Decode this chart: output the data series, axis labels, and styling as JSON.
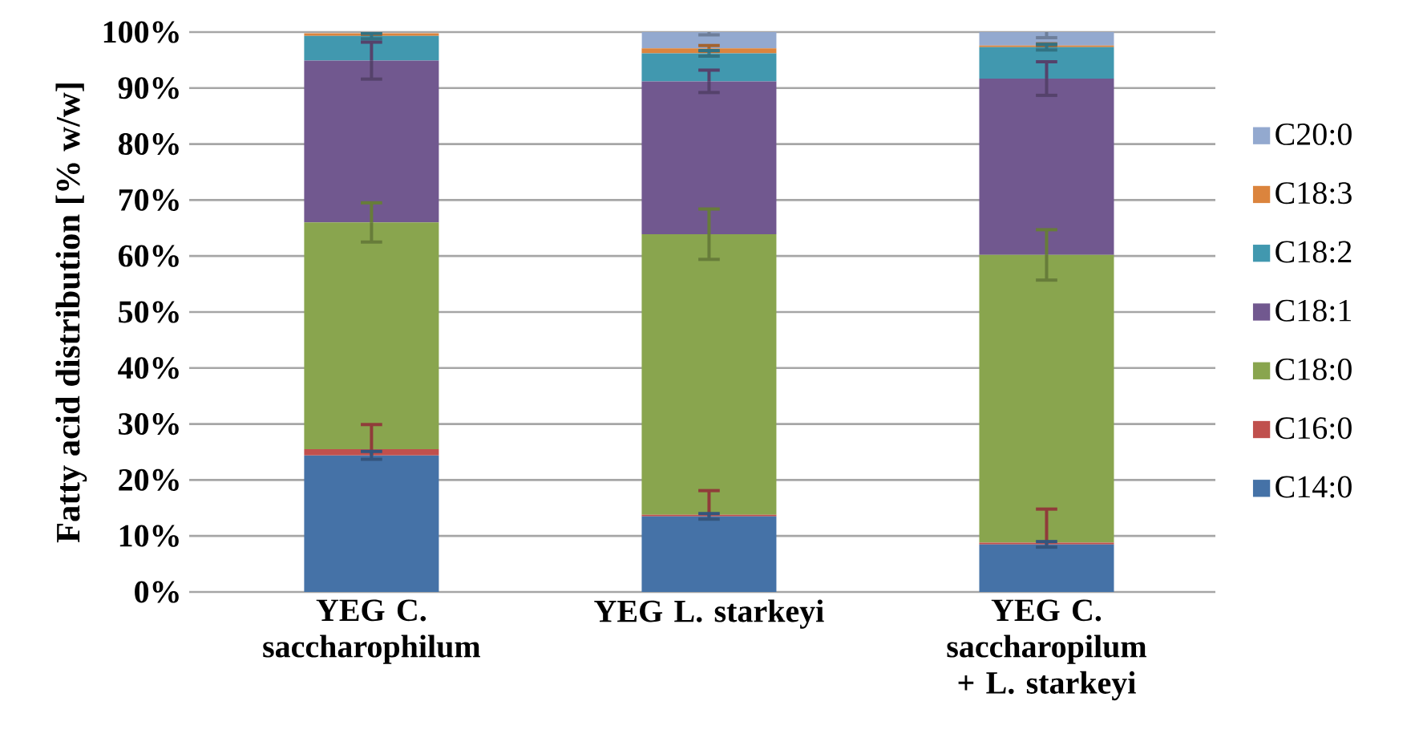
{
  "chart_data": {
    "type": "bar",
    "stacked": true,
    "ylabel": "Fatty acid distribution [% w/w]",
    "categories": [
      "YEG C. saccharophilum",
      "YEG L. starkeyi",
      "YEG C. saccharopilum + L. starkeyi"
    ],
    "series": [
      {
        "name": "C14:0",
        "color": "#4572a7",
        "values": [
          24.4,
          13.5,
          8.5
        ],
        "errors": [
          0.7,
          0.5,
          0.5
        ]
      },
      {
        "name": "C16:0",
        "color": "#c0504d",
        "values": [
          1.1,
          0.3,
          0.3
        ],
        "errors": [
          4.4,
          4.3,
          6
        ]
      },
      {
        "name": "C18:0",
        "color": "#89a54e",
        "values": [
          40.5,
          50.1,
          51.4
        ],
        "errors": [
          3.5,
          4.5,
          4.5
        ]
      },
      {
        "name": "C18:1",
        "color": "#71588f",
        "values": [
          28.9,
          27.3,
          31.5
        ],
        "errors": [
          3.3,
          2,
          3
        ]
      },
      {
        "name": "C18:2",
        "color": "#4198af",
        "values": [
          4.4,
          5,
          5.6
        ],
        "errors": [
          0.5,
          0.5,
          0.5
        ]
      },
      {
        "name": "C18:3",
        "color": "#db843d",
        "values": [
          0.5,
          0.9,
          0.3
        ],
        "errors": [
          0.3,
          0.5,
          0.3
        ]
      },
      {
        "name": "C20:0",
        "color": "#93a9cf",
        "values": [
          null,
          2.9,
          2.4
        ],
        "errors": [
          null,
          0.5,
          1
        ]
      }
    ],
    "ylim": [
      0,
      100
    ],
    "yticks": [
      {
        "value": 0,
        "label": "0%"
      },
      {
        "value": 10,
        "label": "10%"
      },
      {
        "value": 20,
        "label": "20%"
      },
      {
        "value": 30,
        "label": "30%"
      },
      {
        "value": 40,
        "label": "40%"
      },
      {
        "value": 50,
        "label": "50%"
      },
      {
        "value": 60,
        "label": "60%"
      },
      {
        "value": 70,
        "label": "70%"
      },
      {
        "value": 80,
        "label": "80%"
      },
      {
        "value": 90,
        "label": "90%"
      },
      {
        "value": 100,
        "label": "100%"
      }
    ],
    "grid": "y",
    "legend": "right"
  }
}
